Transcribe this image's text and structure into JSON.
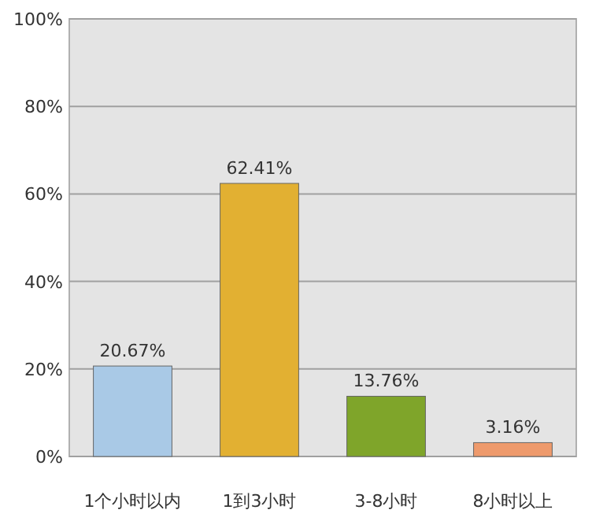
{
  "chart_data": {
    "type": "bar",
    "categories": [
      "1个小时以内",
      "1到3小时",
      "3-8小时",
      "8小时以上"
    ],
    "values": [
      20.67,
      62.41,
      13.76,
      3.16
    ],
    "colors": [
      "#a9c9e6",
      "#e2b032",
      "#7fa52a",
      "#ee9a6c"
    ],
    "value_labels": [
      "20.67%",
      "62.41%",
      "13.76%",
      "3.16%"
    ],
    "ylim": [
      0,
      100
    ],
    "yticks": [
      {
        "value": 0,
        "label": "0%"
      },
      {
        "value": 20,
        "label": "20%"
      },
      {
        "value": 40,
        "label": "40%"
      },
      {
        "value": 60,
        "label": "60%"
      },
      {
        "value": 80,
        "label": "80%"
      },
      {
        "value": 100,
        "label": "100%"
      }
    ],
    "grid": "y"
  }
}
